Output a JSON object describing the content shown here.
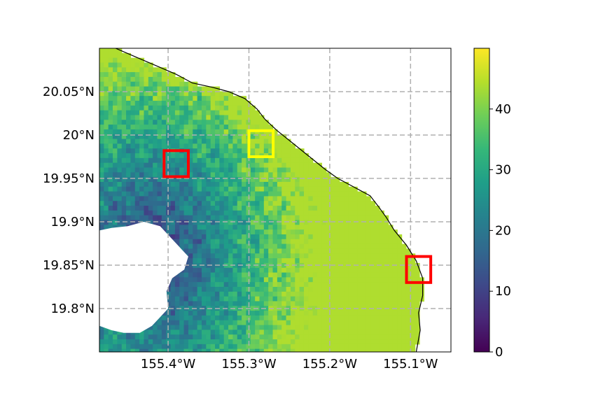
{
  "map": {
    "lon_range": [
      -155.485,
      -155.05
    ],
    "lat_range": [
      19.75,
      20.1
    ],
    "lon_ticks": [
      {
        "value": -155.4,
        "label": "155.4°W"
      },
      {
        "value": -155.3,
        "label": "155.3°W"
      },
      {
        "value": -155.2,
        "label": "155.2°W"
      },
      {
        "value": -155.1,
        "label": "155.1°W"
      }
    ],
    "lat_ticks": [
      {
        "value": 20.05,
        "label": "20.05°N"
      },
      {
        "value": 20.0,
        "label": "20°N"
      },
      {
        "value": 19.95,
        "label": "19.95°N"
      },
      {
        "value": 19.9,
        "label": "19.9°N"
      },
      {
        "value": 19.85,
        "label": "19.85°N"
      },
      {
        "value": 19.8,
        "label": "19.8°N"
      }
    ],
    "grid": true,
    "grid_style": "dashed gray",
    "colormap": "viridis",
    "colorbar": {
      "min": 0,
      "max": 50,
      "ticks": [
        {
          "value": 0,
          "label": "0"
        },
        {
          "value": 10,
          "label": "10"
        },
        {
          "value": 20,
          "label": "20"
        },
        {
          "value": 30,
          "label": "30"
        },
        {
          "value": 40,
          "label": "40"
        }
      ]
    },
    "colors": {
      "viridis": [
        "#440154",
        "#482878",
        "#3e4989",
        "#31688e",
        "#26828e",
        "#1f9e89",
        "#35b779",
        "#6ece58",
        "#b5de2b",
        "#fde725"
      ],
      "red_box": "#ff0000",
      "yellow_box": "#ffff00",
      "coastline": "#000000",
      "grid": "#b0b0b0"
    },
    "highlight_boxes": [
      {
        "color": "red",
        "lon": [
          -155.405,
          -155.375
        ],
        "lat": [
          19.952,
          19.982
        ]
      },
      {
        "color": "yellow",
        "lon": [
          -155.3,
          -155.27
        ],
        "lat": [
          19.975,
          20.005
        ]
      },
      {
        "color": "red",
        "lon": [
          -155.105,
          -155.075
        ],
        "lat": [
          19.83,
          19.86
        ]
      }
    ],
    "coastline": [
      [
        -155.465,
        20.1
      ],
      [
        -155.44,
        20.09
      ],
      [
        -155.415,
        20.08
      ],
      [
        -155.39,
        20.07
      ],
      [
        -155.37,
        20.06
      ],
      [
        -155.345,
        20.055
      ],
      [
        -155.325,
        20.05
      ],
      [
        -155.305,
        20.042
      ],
      [
        -155.29,
        20.03
      ],
      [
        -155.28,
        20.018
      ],
      [
        -155.265,
        20.005
      ],
      [
        -155.245,
        19.99
      ],
      [
        -155.225,
        19.975
      ],
      [
        -155.205,
        19.96
      ],
      [
        -155.19,
        19.95
      ],
      [
        -155.17,
        19.94
      ],
      [
        -155.15,
        19.93
      ],
      [
        -155.14,
        19.918
      ],
      [
        -155.13,
        19.905
      ],
      [
        -155.12,
        19.89
      ],
      [
        -155.105,
        19.873
      ],
      [
        -155.093,
        19.855
      ],
      [
        -155.085,
        19.835
      ],
      [
        -155.085,
        19.815
      ],
      [
        -155.09,
        19.795
      ],
      [
        -155.088,
        19.775
      ],
      [
        -155.093,
        19.75
      ]
    ],
    "no_data_regions": [
      {
        "name": "land-mask",
        "polygon": [
          [
            -155.485,
            19.89
          ],
          [
            -155.47,
            19.893
          ],
          [
            -155.45,
            19.895
          ],
          [
            -155.43,
            19.9
          ],
          [
            -155.41,
            19.895
          ],
          [
            -155.4,
            19.885
          ],
          [
            -155.385,
            19.87
          ],
          [
            -155.375,
            19.86
          ],
          [
            -155.38,
            19.845
          ],
          [
            -155.395,
            19.835
          ],
          [
            -155.402,
            19.82
          ],
          [
            -155.4,
            19.8
          ],
          [
            -155.41,
            19.79
          ],
          [
            -155.42,
            19.78
          ],
          [
            -155.435,
            19.772
          ],
          [
            -155.455,
            19.772
          ],
          [
            -155.47,
            19.775
          ],
          [
            -155.485,
            19.78
          ]
        ]
      }
    ]
  }
}
